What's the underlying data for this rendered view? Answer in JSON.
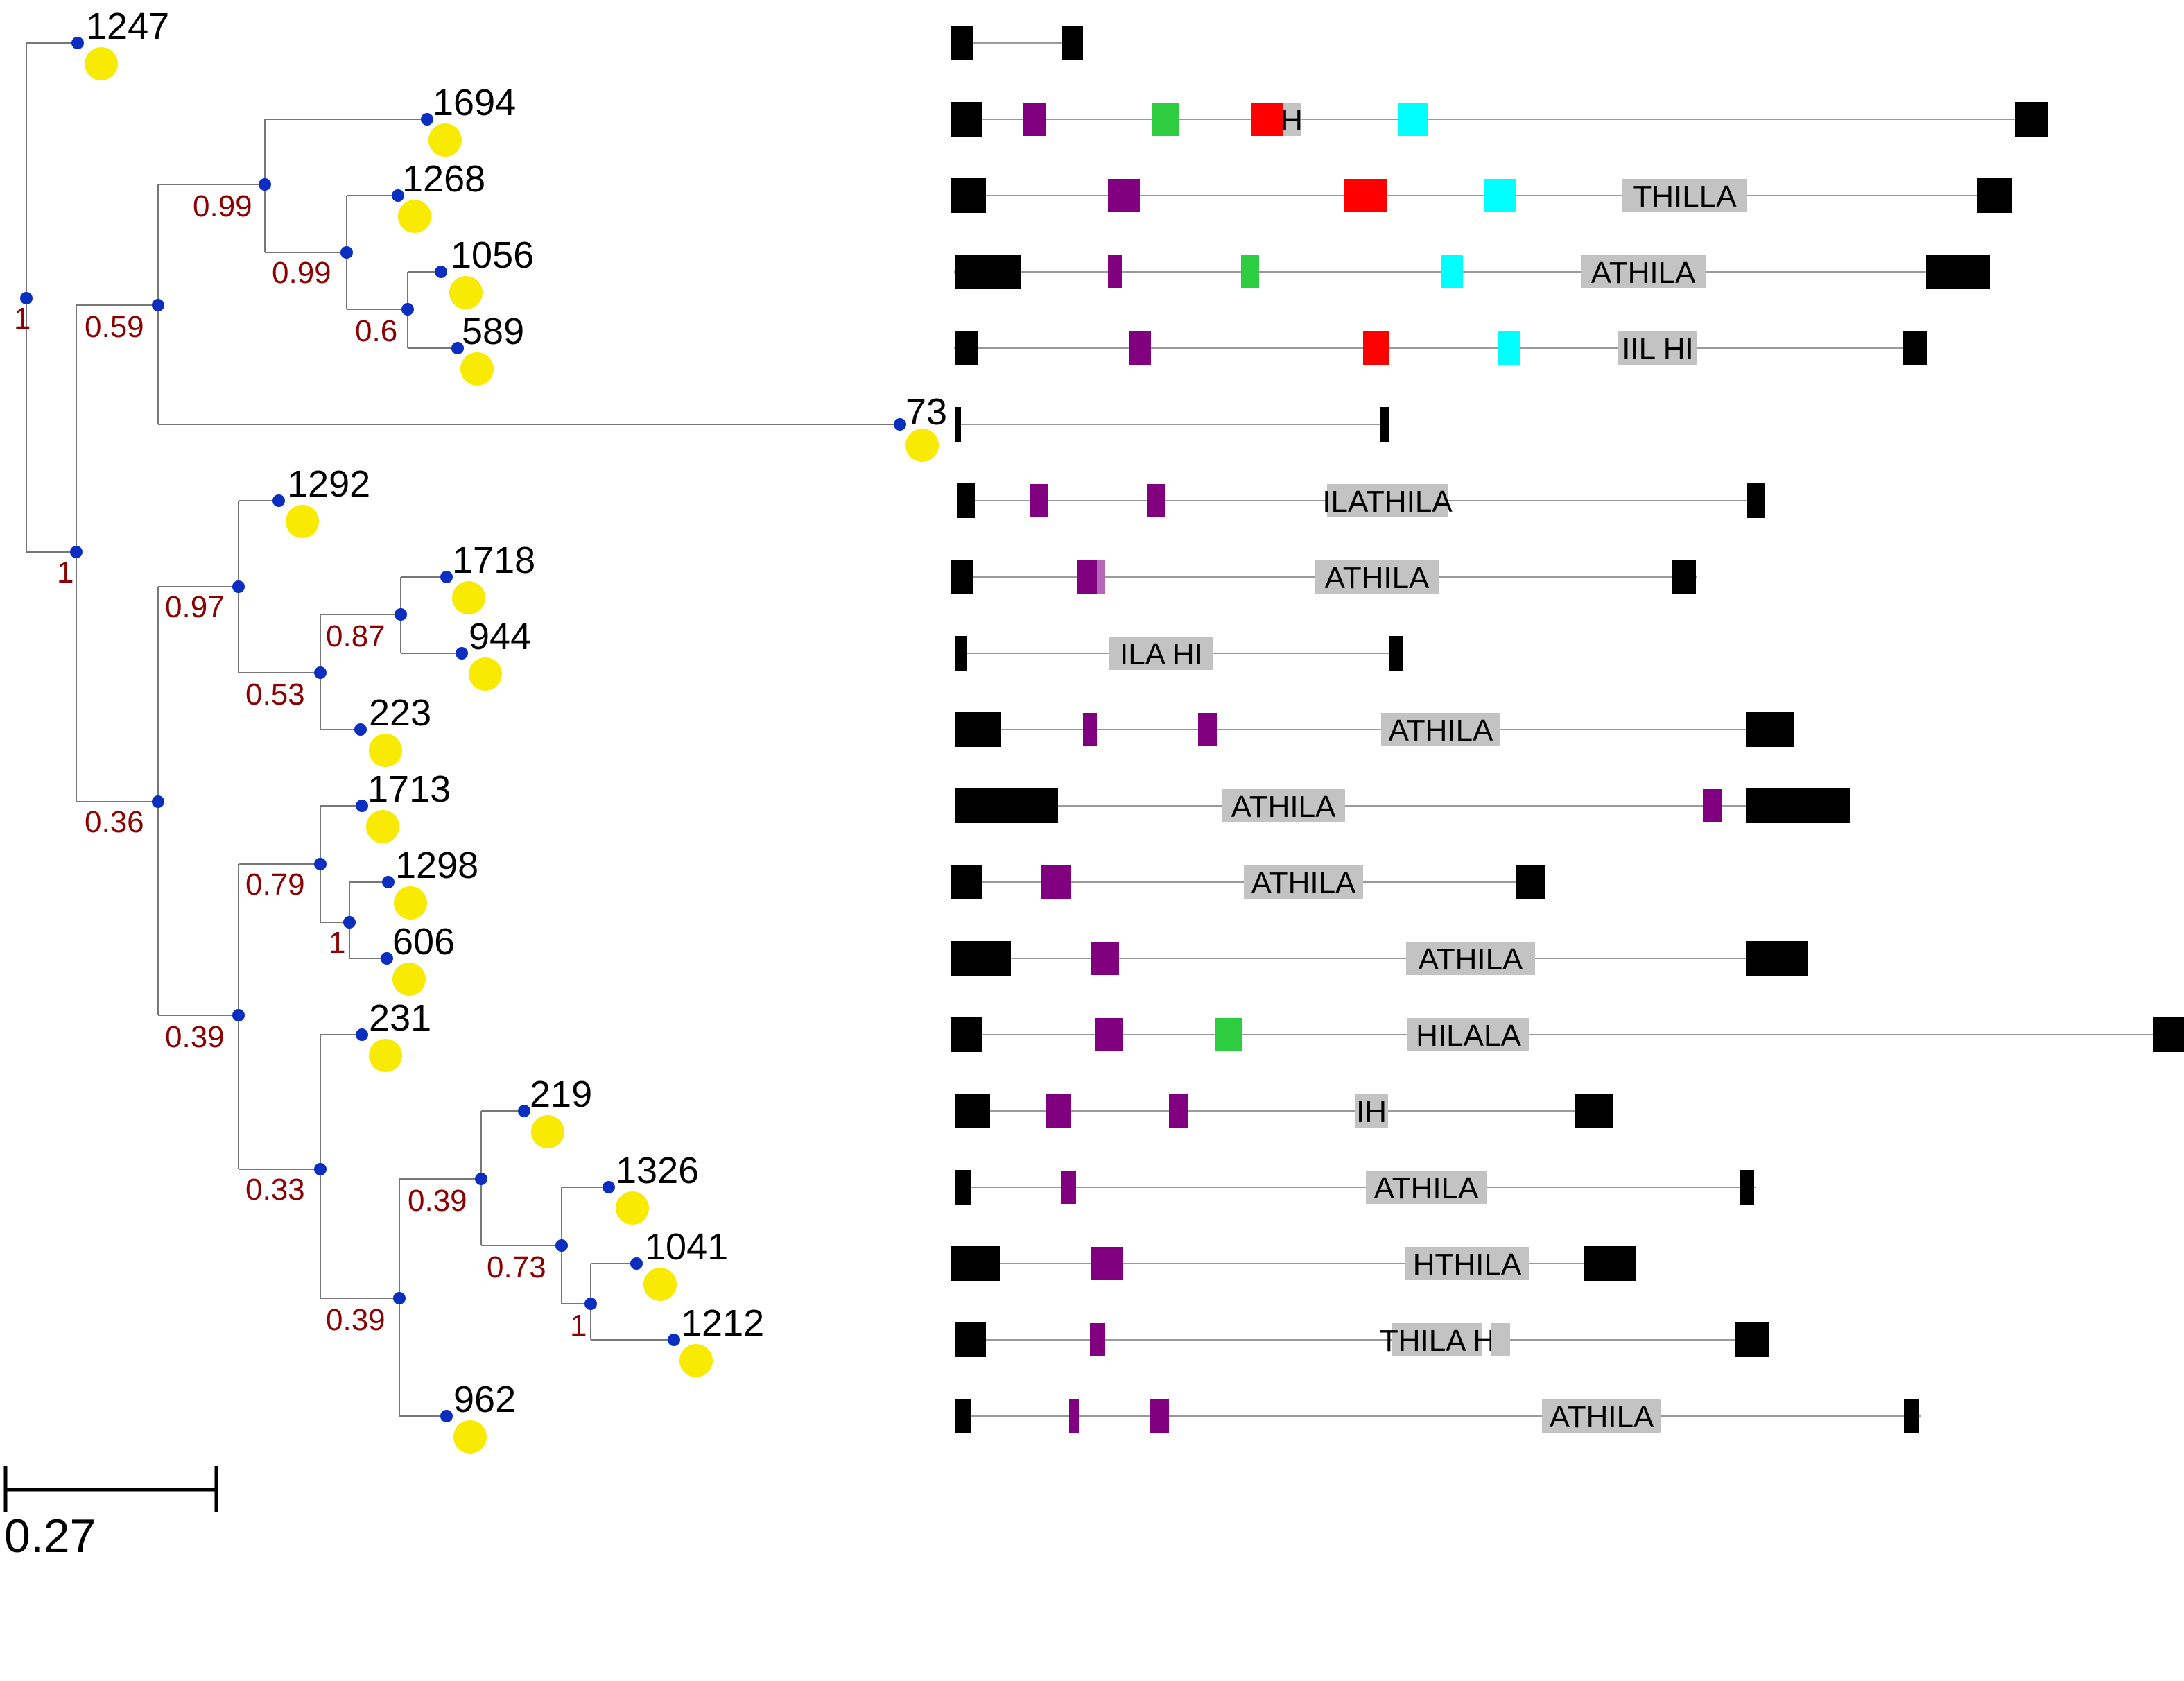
{
  "colors": {
    "support_text": "#8b0000",
    "node_dot": "#0a2ebf",
    "leaf_circle": "#f8ea00",
    "branch": "#777777",
    "track_line": "#9a9a9a",
    "ltr_block": "#000000",
    "annotation_box": "#c3c3c3",
    "domain_purple": "#800080",
    "domain_purple_light": "#b766b7",
    "domain_green": "#2ecc40",
    "domain_red": "#ff0000",
    "domain_cyan": "#00ffff"
  },
  "leaves": [
    "1247",
    "1694",
    "1268",
    "1056",
    "589",
    "73",
    "1292",
    "1718",
    "944",
    "223",
    "1713",
    "1298",
    "606",
    "231",
    "219",
    "1326",
    "1041",
    "1212",
    "962"
  ],
  "support_values": [
    "1",
    "0.99",
    "0.99",
    "0.59",
    "0.6",
    "1",
    "0.97",
    "0.87",
    "0.53",
    "0.36",
    "0.79",
    "1",
    "0.39",
    "0.33",
    "0.39",
    "0.73",
    "1",
    "0.39"
  ],
  "scale_bar": {
    "label": "0.27"
  },
  "annotation_text": "ATHILA",
  "annotation_fragments": [
    "H",
    "THILLA",
    "IIL HI",
    "ILATHILA",
    "ILA HI",
    "HILALA",
    "IH",
    "HTHILA",
    "THILA H"
  ]
}
